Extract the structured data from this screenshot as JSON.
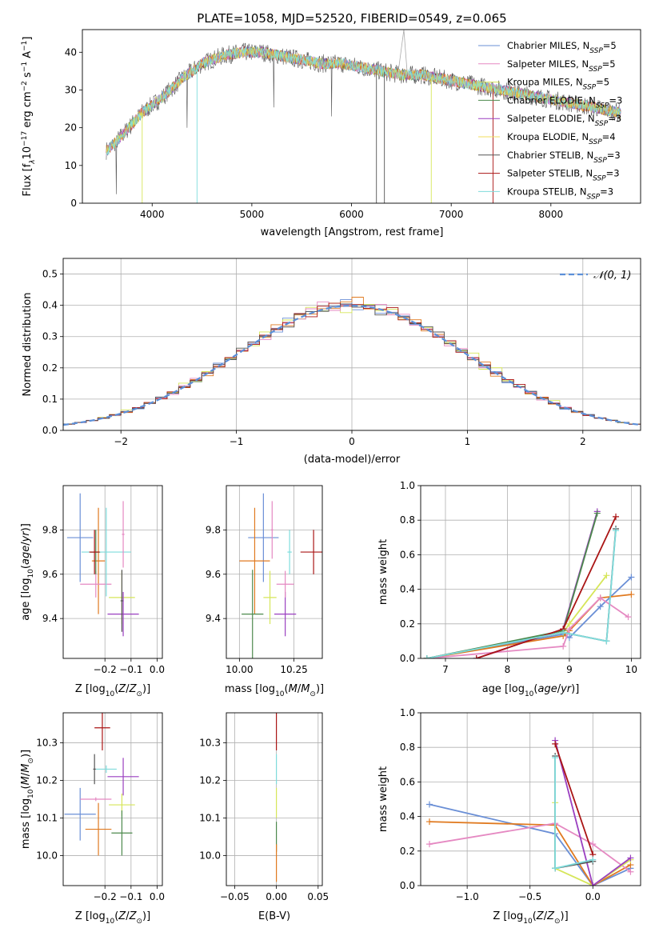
{
  "figure_title": "PLATE=1058, MJD=52520, FIBERID=0549, z=0.065",
  "colors": {
    "chab_miles": "#6a8fd6",
    "salp_miles": "#e589c2",
    "krou_miles": "#d6e659",
    "chab_elodie": "#4d8a4d",
    "salp_elodie": "#9a3fc0",
    "krou_elodie": "#f2dc5c",
    "chab_stelib": "#555555",
    "salp_stelib": "#aa1515",
    "krou_stelib": "#7fdcdc",
    "orange": "#e07a20",
    "grid": "#b0b0b0",
    "normal": "#5b8fd8"
  },
  "chart_data": [
    {
      "type": "line",
      "title": "PLATE=1058, MJD=52520, FIBERID=0549, z=0.065",
      "xlabel": "wavelength [Angstrom, rest frame]",
      "ylabel": "Flux [f_λ10^-17 erg cm^-2 s^-1 A^-1]",
      "ylabel_parts": {
        "main": "Flux [f",
        "sub": "λ",
        "m1": "10",
        "s1": "−17",
        "m2": " erg cm",
        "s2": "−2",
        "m3": " s",
        "s3": "−1",
        "m4": " A",
        "s4": "−1",
        "end": "]"
      },
      "xlim": [
        3300,
        8900
      ],
      "ylim": [
        0,
        46
      ],
      "xticks": [
        "4000",
        "5000",
        "6000",
        "7000",
        "8000"
      ],
      "xtick_values": [
        4000,
        5000,
        6000,
        7000,
        8000
      ],
      "yticks": [
        "0",
        "10",
        "20",
        "30",
        "40"
      ],
      "ytick_values": [
        0,
        10,
        20,
        30,
        40
      ],
      "continuum_x": [
        3550,
        3700,
        3900,
        4100,
        4300,
        4500,
        4700,
        4900,
        5100,
        5300,
        5500,
        5700,
        5900,
        6100,
        6300,
        6500,
        6700,
        6900,
        7100,
        7300,
        7500,
        7700,
        7900,
        8100,
        8300,
        8500,
        8700
      ],
      "continuum_y": [
        14,
        18,
        24,
        28,
        33,
        37,
        39,
        40,
        40,
        39,
        38,
        37,
        37,
        36,
        35,
        34,
        34,
        33,
        32,
        31,
        30,
        29,
        28,
        27,
        26,
        25,
        24
      ],
      "legend": [
        {
          "key": "chab_miles",
          "pre": "Chabrier MILES, N",
          "sub": "SSP",
          "post": "=5"
        },
        {
          "key": "salp_miles",
          "pre": "Salpeter MILES, N",
          "sub": "SSP",
          "post": "=5"
        },
        {
          "key": "krou_miles",
          "pre": "Kroupa MILES, N",
          "sub": "SSP",
          "post": "=5"
        },
        {
          "key": "chab_elodie",
          "pre": "Chabrier ELODIE, N",
          "sub": "SSP",
          "post": "=3"
        },
        {
          "key": "salp_elodie",
          "pre": "Salpeter ELODIE, N",
          "sub": "SSP",
          "post": "=3"
        },
        {
          "key": "krou_elodie",
          "pre": "Kroupa ELODIE, N",
          "sub": "SSP",
          "post": "=4"
        },
        {
          "key": "chab_stelib",
          "pre": "Chabrier STELIB, N",
          "sub": "SSP",
          "post": "=3"
        },
        {
          "key": "salp_stelib",
          "pre": "Salpeter STELIB, N",
          "sub": "SSP",
          "post": "=3"
        },
        {
          "key": "krou_stelib",
          "pre": "Kroupa STELIB, N",
          "sub": "SSP",
          "post": "=3"
        }
      ]
    },
    {
      "type": "histogram",
      "xlabel": "(data-model)/error",
      "ylabel": "Normed distribution",
      "xlim": [
        -2.5,
        2.5
      ],
      "ylim": [
        0,
        0.55
      ],
      "xticks": [
        "−2",
        "−1",
        "0",
        "1",
        "2"
      ],
      "xtick_values": [
        -2,
        -1,
        0,
        1,
        2
      ],
      "yticks": [
        "0.0",
        "0.1",
        "0.2",
        "0.3",
        "0.4",
        "0.5"
      ],
      "ytick_values": [
        0,
        0.1,
        0.2,
        0.3,
        0.4,
        0.5
      ],
      "legend_label": "𝒩(0, 1)",
      "bin_width": 0.1,
      "series": [
        {
          "key": "chab_miles",
          "jitter": [
            0.0,
            0.01,
            -0.02,
            0.03,
            -0.01,
            0.02,
            -0.03,
            0.01,
            0.04,
            -0.02,
            0.0,
            -0.04,
            0.02,
            0.03,
            -0.01,
            0.0
          ]
        },
        {
          "key": "orange",
          "jitter": [
            0.02,
            -0.01,
            0.03,
            -0.02,
            0.04,
            -0.03,
            0.01,
            -0.01,
            0.02,
            0.05,
            -0.02,
            0.01,
            -0.03,
            0.0,
            0.02,
            -0.01
          ]
        },
        {
          "key": "krou_miles",
          "jitter": [
            -0.02,
            0.03,
            0.0,
            0.05,
            -0.03,
            0.08,
            -0.01,
            0.02,
            -0.04,
            0.01,
            0.06,
            -0.02,
            0.03,
            -0.01,
            0.0,
            0.02
          ]
        },
        {
          "key": "salp_miles",
          "jitter": [
            0.01,
            -0.03,
            0.02,
            0.0,
            -0.02,
            0.03,
            0.04,
            -0.02,
            0.01,
            -0.03,
            0.02,
            0.04,
            -0.01,
            0.02,
            -0.02,
            0.01
          ]
        },
        {
          "key": "salp_stelib",
          "jitter": [
            -0.01,
            0.02,
            -0.01,
            0.01,
            0.03,
            -0.02,
            0.02,
            0.04,
            -0.01,
            0.02,
            -0.01,
            0.0,
            0.03,
            -0.02,
            0.01,
            0.0
          ]
        },
        {
          "key": "chab_stelib",
          "jitter": [
            0.03,
            0.0,
            0.01,
            -0.03,
            0.02,
            0.01,
            -0.02,
            0.0,
            0.03,
            -0.01,
            0.01,
            -0.03,
            0.0,
            0.02,
            -0.01,
            0.03
          ]
        }
      ]
    },
    {
      "type": "errorbar",
      "xlabel": "Z [log10(Z/Z⊙)]",
      "ylabel": "age  [log10(age/yr)]",
      "xlim": [
        -0.36,
        0.02
      ],
      "ylim": [
        9.22,
        10.0
      ],
      "xticks": [
        "−0.2",
        "−0.1",
        "0.0"
      ],
      "xtick_values": [
        -0.2,
        -0.1,
        0.0
      ],
      "yticks": [
        "9.4",
        "9.6",
        "9.8"
      ],
      "ytick_values": [
        9.4,
        9.6,
        9.8
      ],
      "points": [
        {
          "key": "chab_miles",
          "x": -0.295,
          "y": 9.765,
          "xe": 0.05,
          "ye": 0.2
        },
        {
          "key": "orange",
          "x": -0.225,
          "y": 9.66,
          "xe": 0.025,
          "ye": 0.24
        },
        {
          "key": "salp_miles",
          "x": -0.235,
          "y": 9.555,
          "xe": 0.06,
          "ye": 0.06
        },
        {
          "key": "chab_elodie",
          "x": -0.235,
          "y": 9.7,
          "xe": 0.02,
          "ye": 0.1
        },
        {
          "key": "krou_stelib",
          "x": -0.195,
          "y": 9.7,
          "xe": 0.095,
          "ye": 0.2
        },
        {
          "key": "krou_miles",
          "x": -0.135,
          "y": 9.495,
          "xe": 0.05,
          "ye": 0.12
        },
        {
          "key": "salp_elodie",
          "x": -0.13,
          "y": 9.42,
          "xe": 0.06,
          "ye": 0.1
        },
        {
          "key": "chab_stelib",
          "x": -0.135,
          "y": 9.48,
          "xe": 0.005,
          "ye": 0.14
        },
        {
          "key": "salp_stelib",
          "x": -0.24,
          "y": 9.7,
          "xe": 0.02,
          "ye": 0.1
        },
        {
          "key": "salp_miles",
          "x": -0.13,
          "y": 9.78,
          "xe": 0.005,
          "ye": 0.15
        }
      ]
    },
    {
      "type": "errorbar",
      "xlabel": "mass [log10(M/M⊙)]",
      "ylabel": "",
      "xlim": [
        9.94,
        10.38
      ],
      "ylim": [
        9.22,
        10.0
      ],
      "xticks": [
        "10.00",
        "10.25"
      ],
      "xtick_values": [
        10.0,
        10.25
      ],
      "yticks": [
        "9.4",
        "9.6",
        "9.8"
      ],
      "ytick_values": [
        9.4,
        9.6,
        9.8
      ],
      "points": [
        {
          "key": "chab_miles",
          "x": 10.11,
          "y": 9.765,
          "xe": 0.07,
          "ye": 0.2
        },
        {
          "key": "orange",
          "x": 10.07,
          "y": 9.66,
          "xe": 0.07,
          "ye": 0.24
        },
        {
          "key": "salp_miles",
          "x": 10.15,
          "y": 9.8,
          "xe": 0.005,
          "ye": 0.13
        },
        {
          "key": "krou_stelib",
          "x": 10.23,
          "y": 9.7,
          "xe": 0.01,
          "ye": 0.1
        },
        {
          "key": "krou_miles",
          "x": 10.14,
          "y": 9.495,
          "xe": 0.03,
          "ye": 0.12
        },
        {
          "key": "salp_elodie",
          "x": 10.21,
          "y": 9.42,
          "xe": 0.05,
          "ye": 0.1
        },
        {
          "key": "chab_elodie",
          "x": 10.06,
          "y": 9.42,
          "xe": 0.05,
          "ye": 0.2
        },
        {
          "key": "salp_stelib",
          "x": 10.34,
          "y": 9.7,
          "xe": 0.06,
          "ye": 0.1
        },
        {
          "key": "salp_miles",
          "x": 10.21,
          "y": 9.555,
          "xe": 0.04,
          "ye": 0.06
        }
      ]
    },
    {
      "type": "line",
      "xlabel": "age  [log10(age/yr)]",
      "ylabel": "mass weight",
      "xlim": [
        6.6,
        10.15
      ],
      "ylim": [
        0,
        1.0
      ],
      "xticks": [
        "7",
        "8",
        "9",
        "10"
      ],
      "xtick_values": [
        7,
        8,
        9,
        10
      ],
      "yticks": [
        "0.0",
        "0.2",
        "0.4",
        "0.6",
        "0.8",
        "1.0"
      ],
      "ytick_values": [
        0,
        0.2,
        0.4,
        0.6,
        0.8,
        1.0
      ],
      "series": [
        {
          "key": "chab_miles",
          "x": [
            6.7,
            8.9,
            9.0,
            9.5,
            10.0
          ],
          "y": [
            0.0,
            0.14,
            0.12,
            0.3,
            0.47
          ]
        },
        {
          "key": "orange",
          "x": [
            6.7,
            8.9,
            9.0,
            9.5,
            10.0
          ],
          "y": [
            0.0,
            0.13,
            0.16,
            0.35,
            0.37
          ]
        },
        {
          "key": "salp_miles",
          "x": [
            6.7,
            8.9,
            9.0,
            9.5,
            9.95
          ],
          "y": [
            0.0,
            0.07,
            0.17,
            0.35,
            0.24
          ]
        },
        {
          "key": "krou_miles",
          "x": [
            6.7,
            8.9,
            9.0,
            9.6
          ],
          "y": [
            0.0,
            0.15,
            0.2,
            0.48
          ]
        },
        {
          "key": "salp_elodie",
          "x": [
            7.5,
            8.9,
            9.45
          ],
          "y": [
            0.0,
            0.17,
            0.85
          ]
        },
        {
          "key": "chab_elodie",
          "x": [
            6.7,
            8.9,
            9.45
          ],
          "y": [
            0.0,
            0.16,
            0.84
          ]
        },
        {
          "key": "salp_stelib",
          "x": [
            7.5,
            8.9,
            9.75
          ],
          "y": [
            0.0,
            0.17,
            0.82
          ]
        },
        {
          "key": "chab_stelib",
          "x": [
            6.7,
            8.9,
            9.6,
            9.75
          ],
          "y": [
            0.0,
            0.15,
            0.1,
            0.75
          ]
        },
        {
          "key": "krou_stelib",
          "x": [
            6.7,
            8.9,
            9.6,
            9.75
          ],
          "y": [
            0.0,
            0.15,
            0.1,
            0.74
          ]
        }
      ]
    },
    {
      "type": "errorbar",
      "xlabel": "Z [log10(Z/Z⊙)]",
      "ylabel": "mass [log10(M/M⊙)]",
      "xlim": [
        -0.36,
        0.02
      ],
      "ylim": [
        9.92,
        10.38
      ],
      "xticks": [
        "−0.2",
        "−0.1",
        "0.0"
      ],
      "xtick_values": [
        -0.2,
        -0.1,
        0.0
      ],
      "yticks": [
        "10.0",
        "10.1",
        "10.2",
        "10.3"
      ],
      "ytick_values": [
        10.0,
        10.1,
        10.2,
        10.3
      ],
      "points": [
        {
          "key": "chab_miles",
          "x": -0.295,
          "y": 10.11,
          "xe": 0.06,
          "ye": 0.07
        },
        {
          "key": "orange",
          "x": -0.225,
          "y": 10.07,
          "xe": 0.05,
          "ye": 0.07
        },
        {
          "key": "salp_miles",
          "x": -0.235,
          "y": 10.15,
          "xe": 0.06,
          "ye": 0.005
        },
        {
          "key": "krou_stelib",
          "x": -0.195,
          "y": 10.23,
          "xe": 0.04,
          "ye": 0.01
        },
        {
          "key": "chab_stelib",
          "x": -0.24,
          "y": 10.23,
          "xe": 0.005,
          "ye": 0.04
        },
        {
          "key": "salp_stelib",
          "x": -0.21,
          "y": 10.34,
          "xe": 0.03,
          "ye": 0.06
        },
        {
          "key": "salp_elodie",
          "x": -0.13,
          "y": 10.21,
          "xe": 0.06,
          "ye": 0.05
        },
        {
          "key": "krou_miles",
          "x": -0.135,
          "y": 10.135,
          "xe": 0.05,
          "ye": 0.03
        },
        {
          "key": "chab_elodie",
          "x": -0.135,
          "y": 10.06,
          "xe": 0.04,
          "ye": 0.06
        }
      ]
    },
    {
      "type": "errorbar",
      "xlabel": "E(B-V)",
      "ylabel": "",
      "xlim": [
        -0.06,
        0.055
      ],
      "ylim": [
        9.92,
        10.38
      ],
      "xticks": [
        "−0.05",
        "0.00",
        "0.05"
      ],
      "xtick_values": [
        -0.05,
        0.0,
        0.05
      ],
      "yticks": [
        "10.0",
        "10.1",
        "10.2",
        "10.3"
      ],
      "ytick_values": [
        10.0,
        10.1,
        10.2,
        10.3
      ],
      "points": [
        {
          "key": "salp_stelib",
          "x": 0.0,
          "y": 10.34,
          "xe": 0.0,
          "ye": 0.06
        },
        {
          "key": "krou_stelib",
          "x": 0.0,
          "y": 10.23,
          "xe": 0.0,
          "ye": 0.04
        },
        {
          "key": "krou_miles",
          "x": 0.0,
          "y": 10.14,
          "xe": 0.0,
          "ye": 0.04
        },
        {
          "key": "chab_elodie",
          "x": 0.0,
          "y": 10.05,
          "xe": 0.0,
          "ye": 0.04
        },
        {
          "key": "orange",
          "x": 0.0,
          "y": 9.98,
          "xe": 0.0,
          "ye": 0.05
        }
      ]
    },
    {
      "type": "line",
      "xlabel": "Z [log10(Z/Z⊙)]",
      "ylabel": "mass weight",
      "xlim": [
        -1.37,
        0.38
      ],
      "ylim": [
        0,
        1.0
      ],
      "xticks": [
        "−1.0",
        "−0.5",
        "0.0"
      ],
      "xtick_values": [
        -1.0,
        -0.5,
        0.0
      ],
      "yticks": [
        "0.0",
        "0.2",
        "0.4",
        "0.6",
        "0.8",
        "1.0"
      ],
      "ytick_values": [
        0,
        0.2,
        0.4,
        0.6,
        0.8,
        1.0
      ],
      "series": [
        {
          "key": "chab_miles",
          "x": [
            -1.3,
            -0.3,
            0.0,
            0.3
          ],
          "y": [
            0.47,
            0.3,
            0.0,
            0.1
          ]
        },
        {
          "key": "orange",
          "x": [
            -1.3,
            -0.3,
            0.0,
            0.3
          ],
          "y": [
            0.37,
            0.35,
            0.0,
            0.12
          ]
        },
        {
          "key": "salp_miles",
          "x": [
            -1.3,
            -0.3,
            0.0,
            0.3
          ],
          "y": [
            0.24,
            0.36,
            0.24,
            0.08
          ]
        },
        {
          "key": "krou_miles",
          "x": [
            -0.3,
            -0.3,
            0.0,
            0.3
          ],
          "y": [
            0.48,
            0.1,
            0.0,
            0.15
          ]
        },
        {
          "key": "salp_elodie",
          "x": [
            -0.3,
            0.0,
            0.3
          ],
          "y": [
            0.84,
            0.0,
            0.16
          ]
        },
        {
          "key": "salp_stelib",
          "x": [
            -0.3,
            0.0
          ],
          "y": [
            0.82,
            0.18
          ]
        },
        {
          "key": "chab_stelib",
          "x": [
            -0.3,
            -0.3,
            0.0
          ],
          "y": [
            0.75,
            0.1,
            0.14
          ]
        },
        {
          "key": "krou_stelib",
          "x": [
            -0.3,
            -0.3,
            0.0
          ],
          "y": [
            0.74,
            0.1,
            0.15
          ]
        }
      ]
    }
  ]
}
